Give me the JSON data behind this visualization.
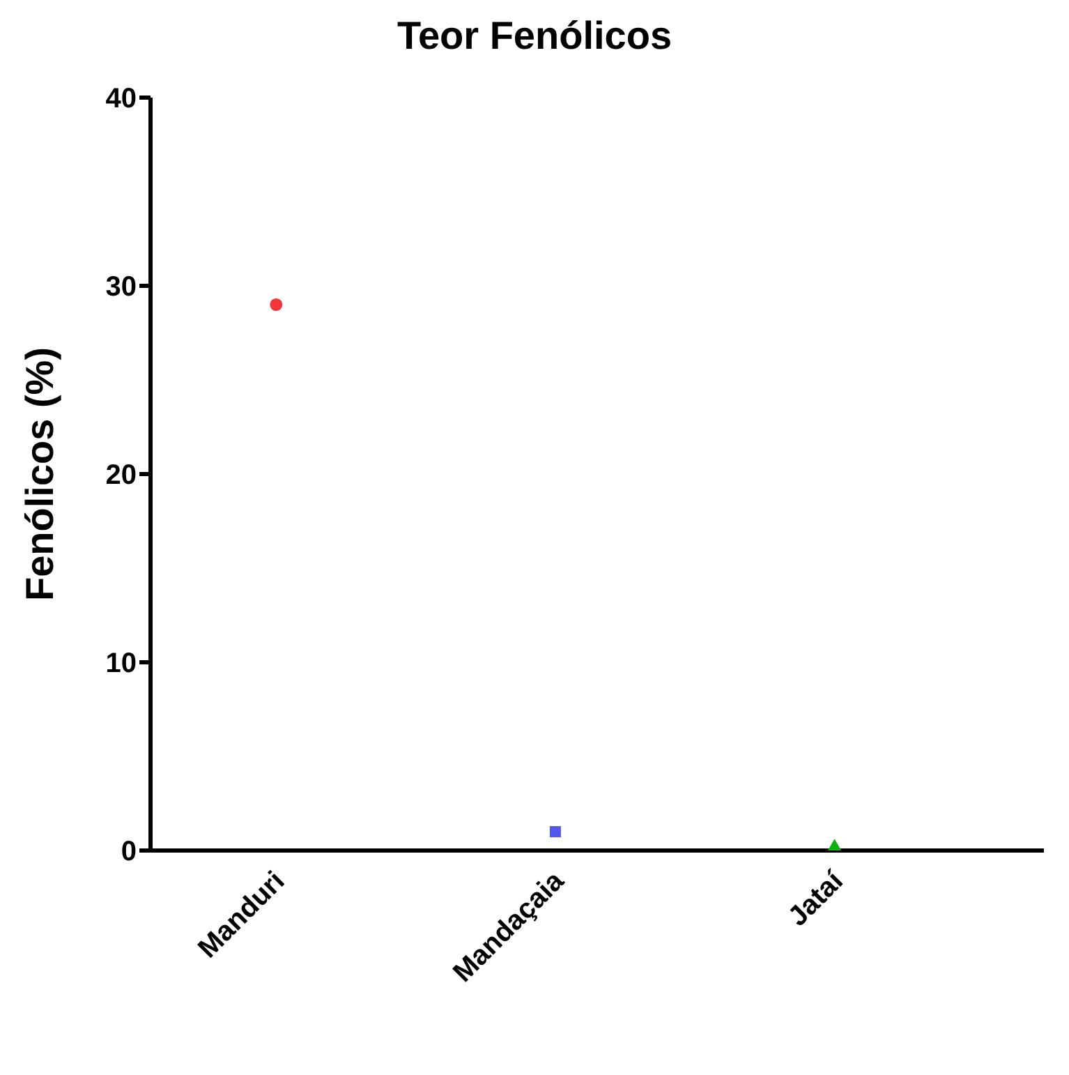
{
  "chart_data": {
    "type": "scatter",
    "title": "Teor Fenólicos",
    "ylabel": "Fenólicos (%)",
    "categories": [
      "Manduri",
      "Mandaçaia",
      "Jataí"
    ],
    "series": [
      {
        "color": "#f0373c",
        "marker": "circle",
        "values": [
          29,
          null,
          null
        ]
      },
      {
        "color": "#5555f0",
        "marker": "square",
        "values": [
          null,
          1,
          null
        ]
      },
      {
        "color": "#10b010",
        "marker": "triangle",
        "values": [
          null,
          null,
          0.1
        ]
      }
    ],
    "ylim": [
      0,
      40
    ],
    "yticks": [
      0,
      10,
      20,
      30,
      40
    ],
    "grid": false,
    "legend": false
  }
}
